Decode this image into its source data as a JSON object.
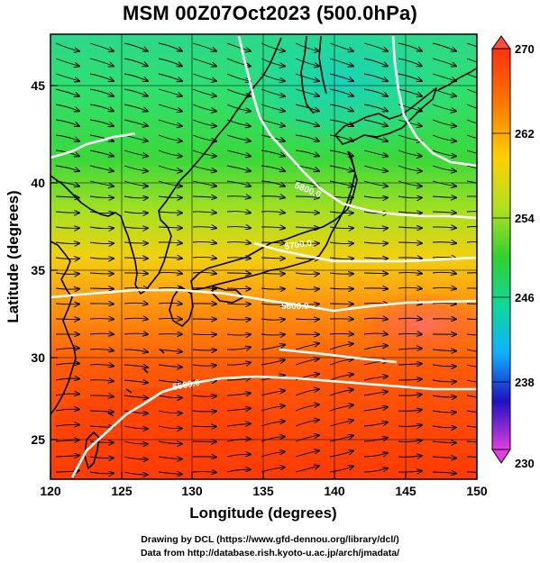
{
  "title": "MSM 00Z07Oct2023 (500.0hPa)",
  "map": {
    "x_axis_label": "Longitude (degrees)",
    "y_axis_label": "Latitude  (degrees)",
    "lon_range": [
      120,
      150
    ],
    "lat_range": [
      22.4,
      47.6
    ],
    "lon_ticks": [
      "120",
      "125",
      "130",
      "135",
      "140",
      "145",
      "150"
    ],
    "lat_ticks": [
      "25",
      "30",
      "35",
      "40",
      "45"
    ],
    "graticule": "every 5 degrees",
    "field": "temperature shading with streamlines",
    "contour_labels": [
      "5800.0",
      "5700.0",
      "5600.0",
      "5500.0"
    ]
  },
  "colorbar": {
    "ticks": [
      "270",
      "262",
      "254",
      "246",
      "238",
      "230"
    ],
    "range": [
      230,
      270
    ],
    "colors": [
      "#e040e0",
      "#2010c0",
      "#10b0ff",
      "#10d89a",
      "#30d030",
      "#b0e020",
      "#ffd000",
      "#ff7a00",
      "#ff3010"
    ]
  },
  "credits": {
    "line1": "Drawing by DCL (https://www.gfd-dennou.org/library/dcl/)",
    "line2": "Data from http://database.rish.kyoto-u.ac.jp/arch/jmadata/"
  }
}
